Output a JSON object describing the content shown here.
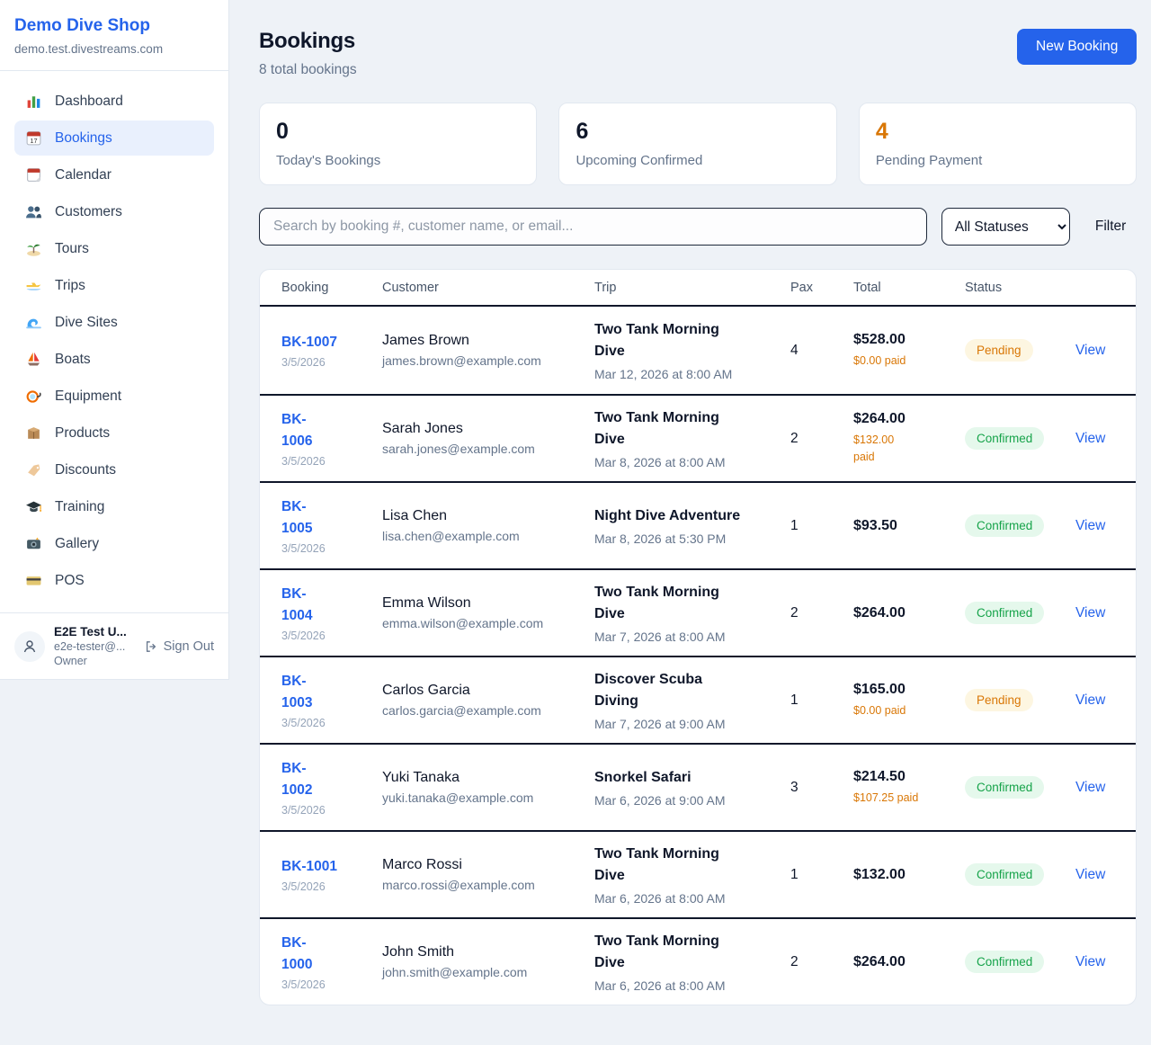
{
  "sidebar": {
    "brand": {
      "name": "Demo Dive Shop",
      "domain": "demo.test.divestreams.com"
    },
    "items": [
      {
        "label": "Dashboard",
        "icon": "bar-chart-icon",
        "active": false
      },
      {
        "label": "Bookings",
        "icon": "calendar-17-icon",
        "active": true
      },
      {
        "label": "Calendar",
        "icon": "tear-calendar-icon",
        "active": false
      },
      {
        "label": "Customers",
        "icon": "users-icon",
        "active": false
      },
      {
        "label": "Tours",
        "icon": "island-icon",
        "active": false
      },
      {
        "label": "Trips",
        "icon": "speedboat-icon",
        "active": false
      },
      {
        "label": "Dive Sites",
        "icon": "wave-icon",
        "active": false
      },
      {
        "label": "Boats",
        "icon": "sailboat-icon",
        "active": false
      },
      {
        "label": "Equipment",
        "icon": "diving-mask-icon",
        "active": false
      },
      {
        "label": "Products",
        "icon": "box-icon",
        "active": false
      },
      {
        "label": "Discounts",
        "icon": "tag-icon",
        "active": false
      },
      {
        "label": "Training",
        "icon": "grad-cap-icon",
        "active": false
      },
      {
        "label": "Gallery",
        "icon": "camera-icon",
        "active": false
      },
      {
        "label": "POS",
        "icon": "credit-card-icon",
        "active": false
      }
    ],
    "user": {
      "name": "E2E Test U...",
      "email": "e2e-tester@...",
      "role": "Owner",
      "sign_out_label": "Sign Out"
    }
  },
  "header": {
    "title": "Bookings",
    "subtitle": "8 total bookings",
    "new_booking_label": "New Booking"
  },
  "stats": [
    {
      "value": "0",
      "label": "Today's Bookings",
      "highlight": false
    },
    {
      "value": "6",
      "label": "Upcoming Confirmed",
      "highlight": false
    },
    {
      "value": "4",
      "label": "Pending Payment",
      "highlight": true
    }
  ],
  "filters": {
    "search_placeholder": "Search by booking #, customer name, or email...",
    "status_selected": "All Statuses",
    "filter_label": "Filter"
  },
  "table": {
    "columns": [
      "Booking",
      "Customer",
      "Trip",
      "Pax",
      "Total",
      "Status"
    ],
    "rows": [
      {
        "id": "BK-1007",
        "date": "3/5/2026",
        "customer": "James Brown",
        "email": "james.brown@example.com",
        "trip": "Two Tank Morning\nDive",
        "trip_datetime": "Mar 12, 2026 at 8:00 AM",
        "pax": "4",
        "total": "$528.00",
        "paid": "$0.00 paid",
        "status": "Pending",
        "view": "View"
      },
      {
        "id": "BK-\n1006",
        "date": "3/5/2026",
        "customer": "Sarah Jones",
        "email": "sarah.jones@example.com",
        "trip": "Two Tank Morning\nDive",
        "trip_datetime": "Mar 8, 2026 at 8:00 AM",
        "pax": "2",
        "total": "$264.00",
        "paid": "$132.00\npaid",
        "status": "Confirmed",
        "view": "View"
      },
      {
        "id": "BK-\n1005",
        "date": "3/5/2026",
        "customer": "Lisa Chen",
        "email": "lisa.chen@example.com",
        "trip": "Night Dive Adventure",
        "trip_datetime": "Mar 8, 2026 at 5:30 PM",
        "pax": "1",
        "total": "$93.50",
        "paid": "",
        "status": "Confirmed",
        "view": "View"
      },
      {
        "id": "BK-\n1004",
        "date": "3/5/2026",
        "customer": "Emma Wilson",
        "email": "emma.wilson@example.com",
        "trip": "Two Tank Morning\nDive",
        "trip_datetime": "Mar 7, 2026 at 8:00 AM",
        "pax": "2",
        "total": "$264.00",
        "paid": "",
        "status": "Confirmed",
        "view": "View"
      },
      {
        "id": "BK-\n1003",
        "date": "3/5/2026",
        "customer": "Carlos Garcia",
        "email": "carlos.garcia@example.com",
        "trip": "Discover Scuba\nDiving",
        "trip_datetime": "Mar 7, 2026 at 9:00 AM",
        "pax": "1",
        "total": "$165.00",
        "paid": "$0.00 paid",
        "status": "Pending",
        "view": "View"
      },
      {
        "id": "BK-\n1002",
        "date": "3/5/2026",
        "customer": "Yuki Tanaka",
        "email": "yuki.tanaka@example.com",
        "trip": "Snorkel Safari",
        "trip_datetime": "Mar 6, 2026 at 9:00 AM",
        "pax": "3",
        "total": "$214.50",
        "paid": "$107.25 paid",
        "status": "Confirmed",
        "view": "View"
      },
      {
        "id": "BK-1001",
        "date": "3/5/2026",
        "customer": "Marco Rossi",
        "email": "marco.rossi@example.com",
        "trip": "Two Tank Morning\nDive",
        "trip_datetime": "Mar 6, 2026 at 8:00 AM",
        "pax": "1",
        "total": "$132.00",
        "paid": "",
        "status": "Confirmed",
        "view": "View"
      },
      {
        "id": "BK-\n1000",
        "date": "3/5/2026",
        "customer": "John Smith",
        "email": "john.smith@example.com",
        "trip": "Two Tank Morning\nDive",
        "trip_datetime": "Mar 6, 2026 at 8:00 AM",
        "pax": "2",
        "total": "$264.00",
        "paid": "",
        "status": "Confirmed",
        "view": "View"
      }
    ]
  },
  "colors": {
    "accent_blue": "#2563eb",
    "pending_text": "#d97706",
    "pending_bg": "#fdf6e1",
    "confirmed_text": "#16a34a",
    "confirmed_bg": "#e5f8ec",
    "paid_orange": "#d97706"
  }
}
